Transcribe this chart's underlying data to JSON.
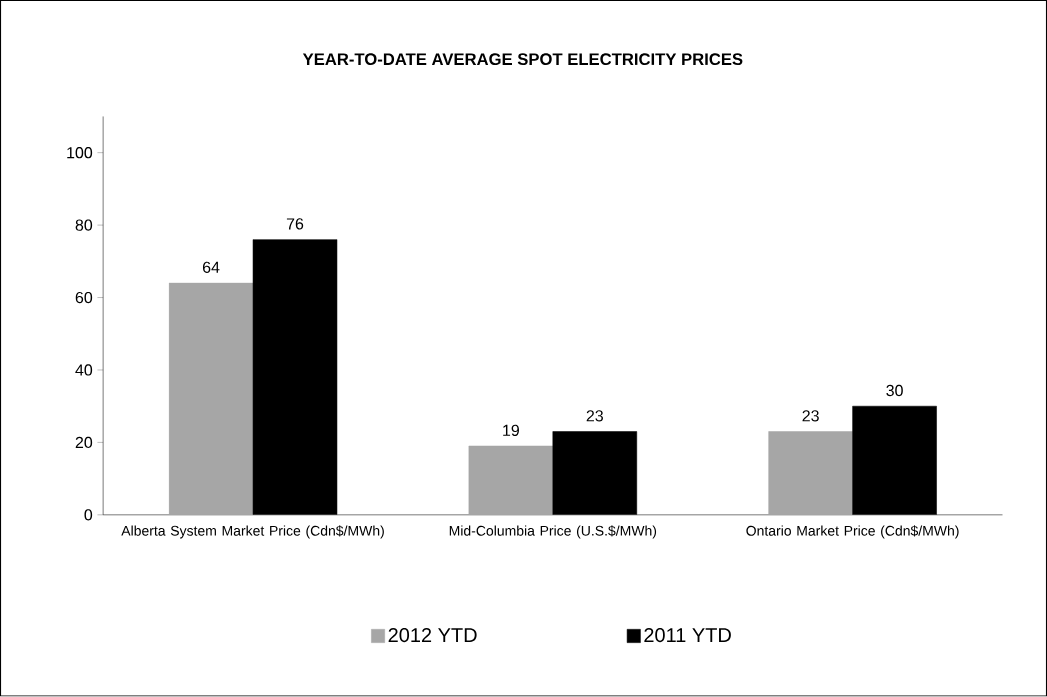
{
  "chart_data": {
    "type": "bar",
    "title": "YEAR-TO-DATE  AVERAGE  SPOT ELECTRICITY  PRICES",
    "categories": [
      "Alberta System Market Price (Cdn$/MWh)",
      "Mid-Columbia Price (U.S.$/MWh)",
      "Ontario Market Price (Cdn$/MWh)"
    ],
    "series": [
      {
        "name": "2012 YTD",
        "color": "#a6a6a6",
        "values": [
          64,
          19,
          23
        ]
      },
      {
        "name": "2011 YTD",
        "color": "#000000",
        "values": [
          76,
          23,
          30
        ]
      }
    ],
    "ylim": [
      0,
      110
    ],
    "yticks": [
      0,
      20,
      40,
      60,
      80,
      100
    ],
    "data_labels": true,
    "legend": "bottom",
    "grid": false
  }
}
